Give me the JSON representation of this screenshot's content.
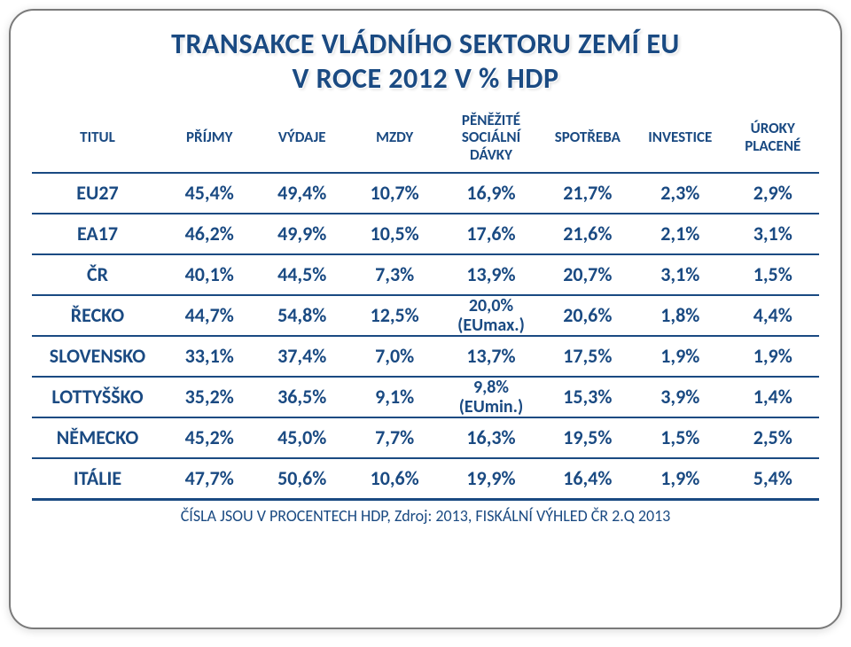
{
  "title_line1": "TRANSAKCE VLÁDNÍHO SEKTORU ZEMÍ EU",
  "title_line2": "V ROCE 2012 V % HDP",
  "columns": [
    "TITUL",
    "PŘÍJMY",
    "VÝDAJE",
    "MZDY",
    "PĚNĚŽITÉ SOCIÁLNÍ DÁVKY",
    "SPOTŘEBA",
    "INVESTICE",
    "ÚROKY PLACENÉ"
  ],
  "rows": [
    {
      "label": "EU27",
      "c": [
        "45,4%",
        "49,4%",
        "10,7%",
        "16,9%",
        "21,7%",
        "2,3%",
        "2,9%"
      ],
      "sub": false
    },
    {
      "label": "EA17",
      "c": [
        "46,2%",
        "49,9%",
        "10,5%",
        "17,6%",
        "21,6%",
        "2,1%",
        "3,1%"
      ],
      "sub": false
    },
    {
      "label": "ČR",
      "c": [
        "40,1%",
        "44,5%",
        "7,3%",
        "13,9%",
        "20,7%",
        "3,1%",
        "1,5%"
      ],
      "sub": false
    },
    {
      "label": "ŘECKO",
      "c": [
        "44,7%",
        "54,8%",
        "12,5%",
        "20,0% (EUmax.)",
        "20,6%",
        "1,8%",
        "4,4%"
      ],
      "sub": true
    },
    {
      "label": "SLOVENSKO",
      "c": [
        "33,1%",
        "37,4%",
        "7,0%",
        "13,7%",
        "17,5%",
        "1,9%",
        "1,9%"
      ],
      "sub": false
    },
    {
      "label": "LOTTYŠŠKO",
      "c": [
        "35,2%",
        "36,5%",
        "9,1%",
        "9,8% (EUmin.)",
        "15,3%",
        "3,9%",
        "1,4%"
      ],
      "sub": true
    },
    {
      "label": "NĚMECKO",
      "c": [
        "45,2%",
        "45,0%",
        "7,7%",
        "16,3%",
        "19,5%",
        "1,5%",
        "2,5%"
      ],
      "sub": false
    },
    {
      "label": "ITÁLIE",
      "c": [
        "47,7%",
        "50,6%",
        "10,6%",
        "19,9%",
        "16,4%",
        "1,9%",
        "5,4%"
      ],
      "sub": false
    }
  ],
  "footer": "ČÍSLA JSOU V PROCENTECH HDP, Zdroj: 2013, FISKÁLNÍ VÝHLED ČR 2.Q 2013",
  "colors": {
    "text": "#1a4a82",
    "border": "#1a4a82",
    "frame_border": "#7a7a7a",
    "background": "#ffffff"
  }
}
